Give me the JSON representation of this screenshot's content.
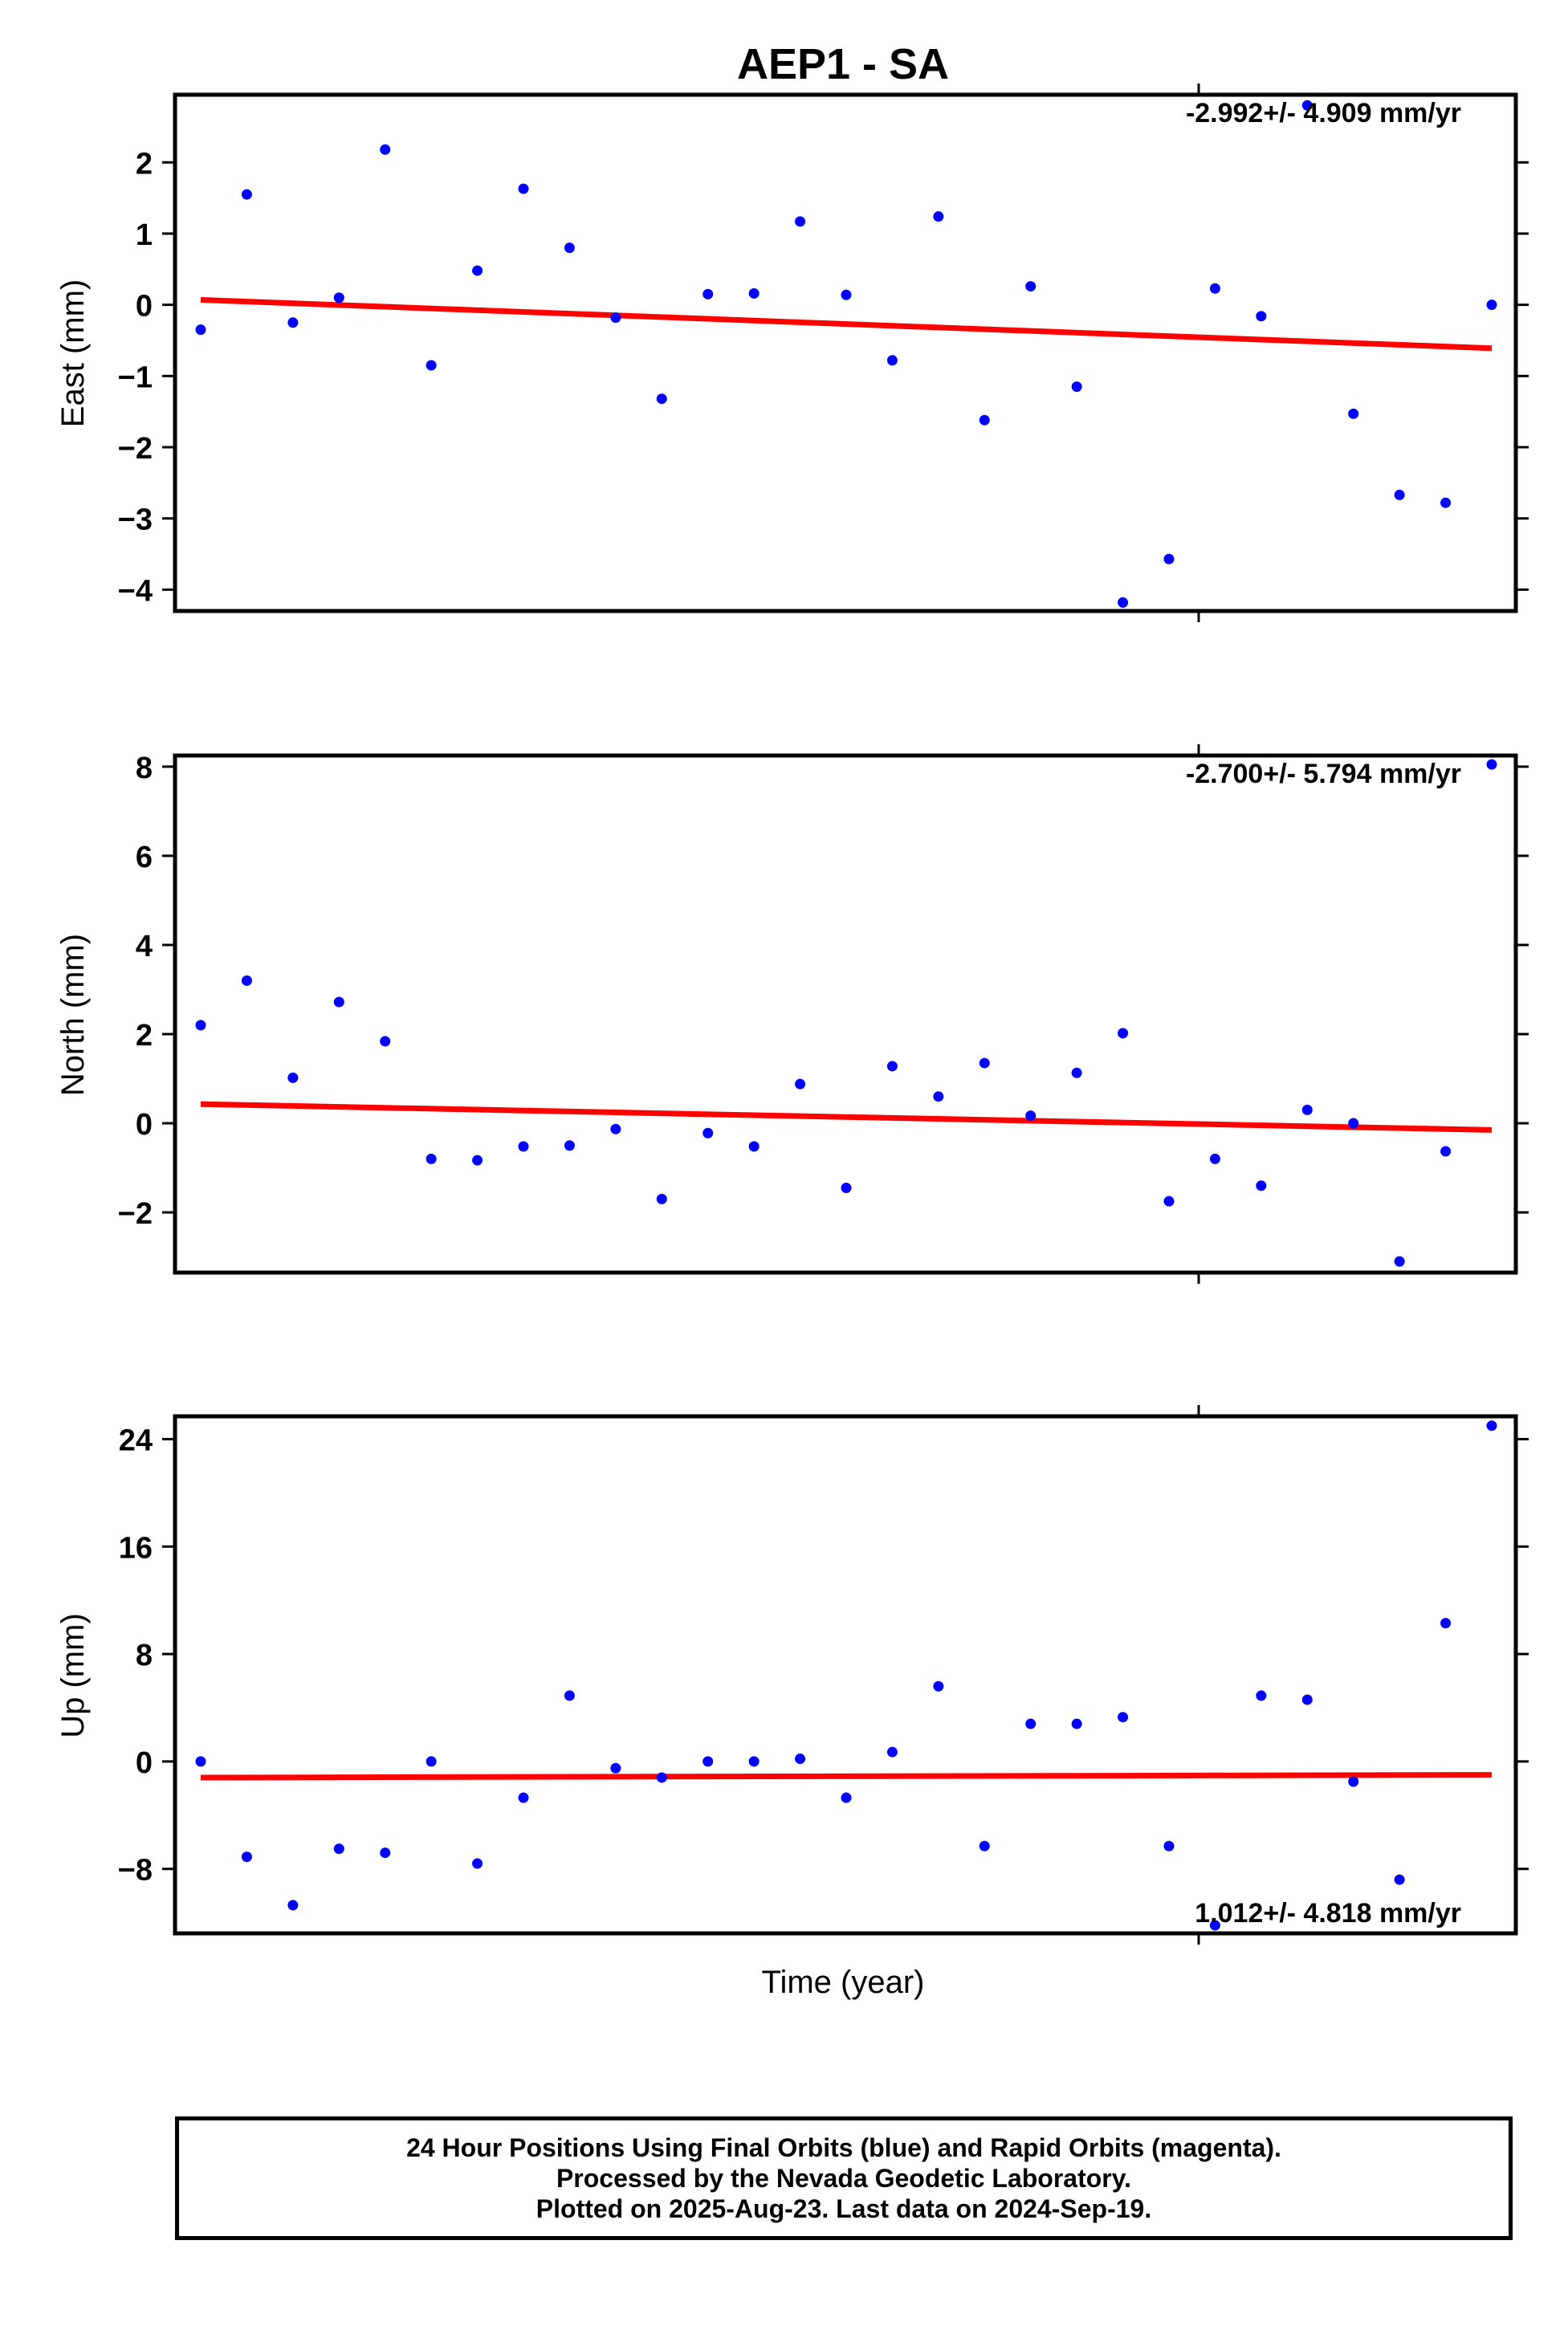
{
  "figure": {
    "title": "AEP1 - SA",
    "xlabel": "Time (year)",
    "footer": {
      "line1": "24 Hour Positions Using Final Orbits (blue) and Rapid Orbits (magenta).",
      "line2": "Processed by the Nevada Geodetic Laboratory.",
      "line3": "Plotted on 2025-Aug-23. Last data on 2024-Sep-19."
    }
  },
  "colors": {
    "points": "#0000ff",
    "trend": "#ff0000",
    "frame": "#000000"
  },
  "chart_data": [
    {
      "type": "scatter",
      "name": "east",
      "ylabel": "East (mm)",
      "rate_text": "-2.992+/- 4.909 mm/yr",
      "rate_position": "top-right",
      "yticks": [
        2,
        1,
        0,
        -1,
        -2,
        -3,
        -4
      ],
      "ytick_labels": [
        "2",
        "1",
        "0",
        "−1",
        "−2",
        "−3",
        "−4"
      ],
      "ylim": [
        -4.3,
        2.95
      ],
      "xlim": [
        0,
        29.6
      ],
      "x": [
        0,
        1,
        2,
        3,
        4,
        5,
        6,
        7,
        8,
        9,
        10,
        11,
        12,
        13,
        14,
        15,
        16,
        17,
        18,
        19,
        20,
        21,
        22,
        23,
        24,
        25,
        26,
        27,
        28
      ],
      "values": [
        -0.35,
        1.55,
        -0.25,
        0.1,
        2.18,
        -0.85,
        0.48,
        1.63,
        0.8,
        -0.18,
        -1.32,
        0.15,
        0.16,
        1.17,
        0.14,
        -0.78,
        1.24,
        -1.62,
        0.26,
        -1.15,
        -4.18,
        -3.57,
        0.23,
        -0.16,
        2.8,
        -1.53,
        -2.67,
        -2.78,
        0.0
      ],
      "trend": {
        "x": [
          0,
          28
        ],
        "y": [
          0.07,
          -0.61
        ]
      },
      "grid": false
    },
    {
      "type": "scatter",
      "name": "north",
      "ylabel": "North (mm)",
      "rate_text": "-2.700+/- 5.794 mm/yr",
      "rate_position": "top-right",
      "yticks": [
        8,
        6,
        4,
        2,
        0,
        -2
      ],
      "ytick_labels": [
        "8",
        "6",
        "4",
        "2",
        "0",
        "−2"
      ],
      "ylim": [
        -3.35,
        8.25
      ],
      "xlim": [
        0,
        29.6
      ],
      "x": [
        0,
        1,
        2,
        3,
        4,
        5,
        6,
        7,
        8,
        9,
        10,
        11,
        12,
        13,
        14,
        15,
        16,
        17,
        18,
        19,
        20,
        21,
        22,
        23,
        24,
        25,
        26,
        27,
        28
      ],
      "values": [
        2.2,
        3.2,
        1.02,
        2.72,
        1.84,
        -0.8,
        -0.83,
        -0.52,
        -0.5,
        -0.13,
        -1.7,
        -0.22,
        -0.52,
        0.88,
        -1.45,
        1.28,
        0.6,
        1.35,
        0.17,
        1.13,
        2.02,
        -1.75,
        -0.8,
        -1.4,
        0.3,
        0.0,
        -3.1,
        -0.63,
        8.05
      ],
      "trend": {
        "x": [
          0,
          28
        ],
        "y": [
          0.43,
          -0.15
        ]
      },
      "grid": false
    },
    {
      "type": "scatter",
      "name": "up",
      "ylabel": "Up (mm)",
      "rate_text": "1.012+/- 4.818 mm/yr",
      "rate_position": "bottom-right",
      "yticks": [
        24,
        16,
        8,
        0,
        -8
      ],
      "ytick_labels": [
        "24",
        "16",
        "8",
        "0",
        "−8"
      ],
      "ylim": [
        -12.8,
        25.7
      ],
      "xlim": [
        0,
        29.6
      ],
      "x": [
        0,
        1,
        2,
        3,
        4,
        5,
        6,
        7,
        8,
        9,
        10,
        11,
        12,
        13,
        14,
        15,
        16,
        17,
        18,
        19,
        20,
        21,
        22,
        23,
        24,
        25,
        26,
        27,
        28
      ],
      "values": [
        0.0,
        -7.1,
        -10.7,
        -6.5,
        -6.8,
        0.0,
        -7.6,
        -2.7,
        4.9,
        -0.5,
        -1.2,
        0.0,
        0.0,
        0.2,
        -2.7,
        0.7,
        5.6,
        -6.3,
        2.8,
        2.8,
        3.3,
        -6.3,
        -12.2,
        4.9,
        4.6,
        -1.5,
        -8.8,
        10.3,
        25.0
      ],
      "trend": {
        "x": [
          0,
          28
        ],
        "y": [
          -1.2,
          -1.0
        ]
      },
      "grid": false
    }
  ]
}
